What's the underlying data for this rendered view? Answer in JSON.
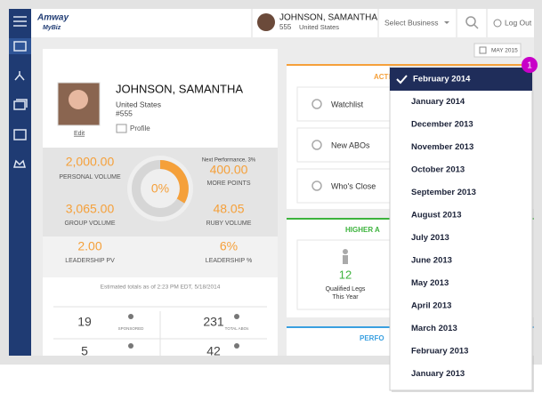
{
  "header": {
    "brand": "Amway",
    "sub_brand": "MyBiz",
    "user_name": "JOHNSON, SAMANTHA",
    "user_id": "555",
    "user_country": "United States",
    "business_select": "Select Business",
    "logout": "Log Out"
  },
  "period_button": "MAY 2015",
  "profile": {
    "name": "JOHNSON, SAMANTHA",
    "country": "United States",
    "id": "#555",
    "edit": "Edit",
    "profile_link": "Profile"
  },
  "donut": {
    "label": "0%"
  },
  "next_performance": "Next Performance, 3%",
  "stats": [
    {
      "value": "2,000.00",
      "label": "PERSONAL VOLUME"
    },
    {
      "value": "400.00",
      "label": "MORE POINTS"
    },
    {
      "value": "3,065.00",
      "label": "GROUP VOLUME"
    },
    {
      "value": "48.05",
      "label": "RUBY VOLUME"
    },
    {
      "value": "2.00",
      "label": "LEADERSHIP PV"
    },
    {
      "value": "6%",
      "label": "LEADERSHIP %"
    }
  ],
  "estimate": "Estimated totals as of 2:23 PM EDT, 5/18/2014",
  "counts": [
    {
      "value": "19",
      "label": "SPONSORED"
    },
    {
      "value": "231",
      "label": "TOTAL ABOs"
    },
    {
      "value": "5"
    },
    {
      "value": "42"
    }
  ],
  "actions": {
    "title": "ACTI",
    "items": [
      "Watchlist",
      "New ABOs",
      "Who's Close"
    ]
  },
  "higher": {
    "title": "HIGHER A",
    "value": "12",
    "label_line1": "Qualified Legs",
    "label_line2": "This Year"
  },
  "performance": {
    "title": "PERFO"
  },
  "dropdown": {
    "items": [
      "February 2014",
      "January  2014",
      "December 2013",
      "November 2013",
      "October 2013",
      "September 2013",
      "August 2013",
      "July 2013",
      "June 2013",
      "May 2013",
      "April 2013",
      "March 2013",
      "February 2013",
      "January 2013"
    ]
  },
  "badge": "1"
}
